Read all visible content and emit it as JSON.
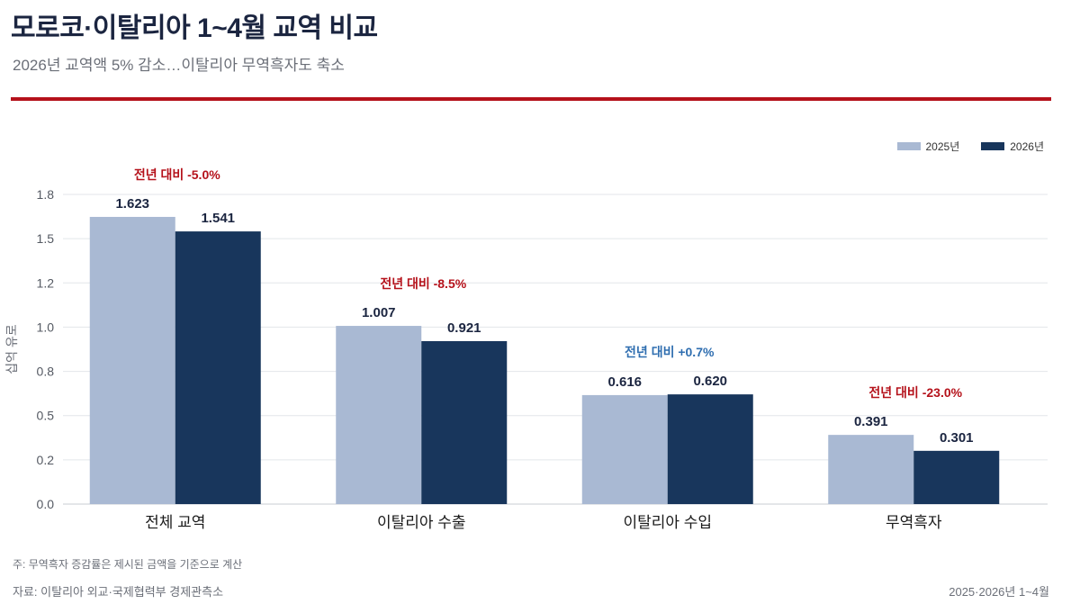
{
  "header": {
    "title": "모로코·이탈리아 1~4월 교역 비교",
    "subtitle": "2026년 교역액 5% 감소…이탈리아 무역흑자도 축소"
  },
  "footer": {
    "note": "주: 무역흑자 증감률은 제시된 금액을 기준으로 계산",
    "source": "자료: 이탈리아 외교·국제협력부 경제관측소",
    "period": "2025·2026년 1~4월"
  },
  "colors": {
    "accent_rule": "#b5121b",
    "series_2025": "#a9b9d3",
    "series_2026": "#18365c",
    "negative": "#b5121b",
    "positive": "#2f6eb0"
  },
  "chart_data": {
    "type": "bar",
    "categories": [
      "전체 교역",
      "이탈리아 수출",
      "이탈리아 수입",
      "무역흑자"
    ],
    "series": [
      {
        "name": "2025년",
        "values": [
          1.623,
          1.007,
          0.616,
          0.391
        ]
      },
      {
        "name": "2026년",
        "values": [
          1.541,
          0.921,
          0.62,
          0.301
        ]
      }
    ],
    "value_labels": [
      [
        "1.623",
        "1.007",
        "0.616",
        "0.391"
      ],
      [
        "1.541",
        "0.921",
        "0.620",
        "0.301"
      ]
    ],
    "change_labels": [
      "전년 대비 -5.0%",
      "전년 대비 -8.5%",
      "전년 대비 +0.7%",
      "전년 대비 -23.0%"
    ],
    "change_signs": [
      "negative",
      "negative",
      "positive",
      "negative"
    ],
    "ylabel": "십억 유로",
    "ylim": [
      0,
      1.75
    ],
    "yticks": [
      0,
      0.25,
      0.5,
      0.75,
      1.0,
      1.25,
      1.5,
      1.75
    ],
    "ytick_labels": [
      "0.0",
      "0.2",
      "0.5",
      "0.8",
      "1.0",
      "1.2",
      "1.5",
      "1.8"
    ],
    "grid": true,
    "legend": "top-right"
  }
}
